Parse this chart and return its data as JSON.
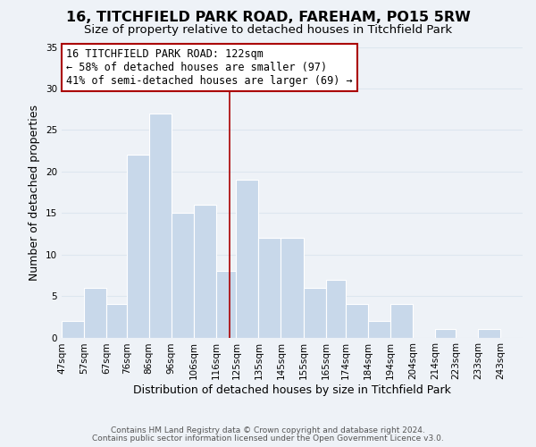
{
  "title": "16, TITCHFIELD PARK ROAD, FAREHAM, PO15 5RW",
  "subtitle": "Size of property relative to detached houses in Titchfield Park",
  "xlabel": "Distribution of detached houses by size in Titchfield Park",
  "ylabel": "Number of detached properties",
  "bin_labels": [
    "47sqm",
    "57sqm",
    "67sqm",
    "76sqm",
    "86sqm",
    "96sqm",
    "106sqm",
    "116sqm",
    "125sqm",
    "135sqm",
    "145sqm",
    "155sqm",
    "165sqm",
    "174sqm",
    "184sqm",
    "194sqm",
    "204sqm",
    "214sqm",
    "223sqm",
    "233sqm",
    "243sqm"
  ],
  "bin_edges": [
    47,
    57,
    67,
    76,
    86,
    96,
    106,
    116,
    125,
    135,
    145,
    155,
    165,
    174,
    184,
    194,
    204,
    214,
    223,
    233,
    243
  ],
  "bar_heights": [
    2,
    6,
    4,
    22,
    27,
    15,
    16,
    8,
    19,
    12,
    12,
    6,
    7,
    4,
    2,
    4,
    0,
    1,
    0,
    1,
    0
  ],
  "bar_color": "#c8d8ea",
  "bar_edge_color": "#ffffff",
  "grid_color": "#dde6ef",
  "vline_x": 122,
  "vline_color": "#aa0000",
  "annotation_line1": "16 TITCHFIELD PARK ROAD: 122sqm",
  "annotation_line2": "← 58% of detached houses are smaller (97)",
  "annotation_line3": "41% of semi-detached houses are larger (69) →",
  "annotation_box_color": "#ffffff",
  "annotation_box_edge": "#aa0000",
  "ylim": [
    0,
    35
  ],
  "yticks": [
    0,
    5,
    10,
    15,
    20,
    25,
    30,
    35
  ],
  "footer1": "Contains HM Land Registry data © Crown copyright and database right 2024.",
  "footer2": "Contains public sector information licensed under the Open Government Licence v3.0.",
  "background_color": "#eef2f7",
  "title_fontsize": 11.5,
  "subtitle_fontsize": 9.5,
  "axis_label_fontsize": 9,
  "tick_fontsize": 7.5,
  "annotation_fontsize": 8.5,
  "footer_fontsize": 6.5
}
